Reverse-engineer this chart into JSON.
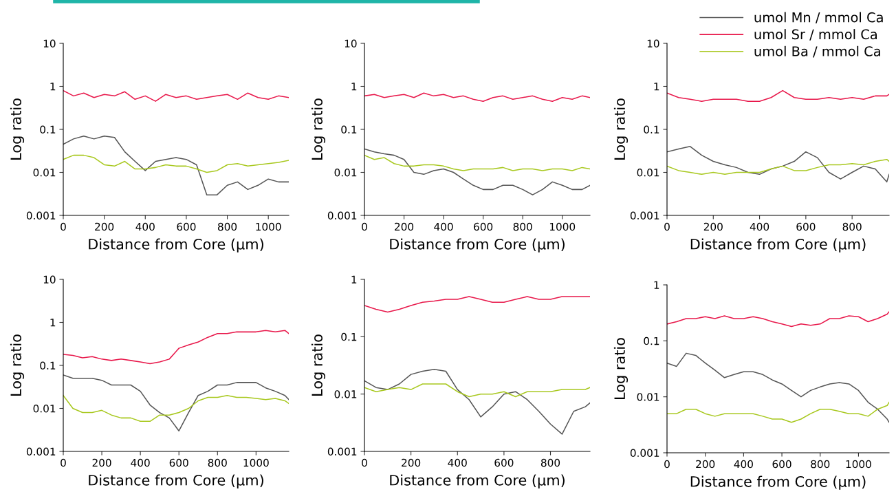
{
  "chart_data": [
    {
      "type": "line",
      "xlabel": "Distance from Core (μm)",
      "ylabel": "Log ratio",
      "log": true,
      "grid": false,
      "xlim": [
        0,
        1100
      ],
      "ylim": [
        0.001,
        10
      ],
      "xticks": [
        0,
        200,
        400,
        600,
        800,
        1000
      ],
      "yticks": [
        0.001,
        0.01,
        0.1,
        1,
        10
      ],
      "x": [
        0,
        50,
        100,
        150,
        200,
        250,
        300,
        350,
        400,
        450,
        500,
        550,
        600,
        650,
        700,
        750,
        800,
        850,
        900,
        950,
        1000,
        1050,
        1100
      ],
      "series": [
        {
          "color": "#555555",
          "values": [
            0.045,
            0.06,
            0.07,
            0.06,
            0.07,
            0.065,
            0.03,
            0.018,
            0.011,
            0.018,
            0.02,
            0.022,
            0.02,
            0.015,
            0.003,
            0.003,
            0.005,
            0.006,
            0.004,
            0.005,
            0.007,
            0.006,
            0.006
          ]
        },
        {
          "color": "#e8174a",
          "values": [
            0.8,
            0.6,
            0.7,
            0.55,
            0.65,
            0.6,
            0.75,
            0.5,
            0.6,
            0.45,
            0.65,
            0.55,
            0.6,
            0.5,
            0.55,
            0.6,
            0.65,
            0.5,
            0.7,
            0.55,
            0.5,
            0.6,
            0.55
          ]
        },
        {
          "color": "#a8c81e",
          "values": [
            0.02,
            0.025,
            0.025,
            0.022,
            0.015,
            0.014,
            0.018,
            0.012,
            0.012,
            0.013,
            0.015,
            0.014,
            0.014,
            0.012,
            0.01,
            0.011,
            0.015,
            0.016,
            0.014,
            0.015,
            0.016,
            0.017,
            0.019
          ]
        }
      ]
    },
    {
      "type": "line",
      "xlabel": "Distance from Core (μm)",
      "ylabel": "Log ratio",
      "log": true,
      "grid": false,
      "xlim": [
        0,
        1140
      ],
      "ylim": [
        0.001,
        10
      ],
      "xticks": [
        0,
        200,
        400,
        600,
        800,
        1000
      ],
      "yticks": [
        0.001,
        0.01,
        0.1,
        1,
        10
      ],
      "x": [
        0,
        50,
        100,
        150,
        200,
        250,
        300,
        350,
        400,
        450,
        500,
        550,
        600,
        650,
        700,
        750,
        800,
        850,
        900,
        950,
        1000,
        1050,
        1100,
        1140
      ],
      "series": [
        {
          "color": "#555555",
          "values": [
            0.035,
            0.03,
            0.027,
            0.025,
            0.02,
            0.01,
            0.009,
            0.011,
            0.012,
            0.01,
            0.007,
            0.005,
            0.004,
            0.004,
            0.005,
            0.005,
            0.004,
            0.003,
            0.004,
            0.006,
            0.005,
            0.004,
            0.004,
            0.005
          ]
        },
        {
          "color": "#e8174a",
          "values": [
            0.6,
            0.65,
            0.55,
            0.6,
            0.65,
            0.55,
            0.7,
            0.6,
            0.65,
            0.55,
            0.6,
            0.5,
            0.45,
            0.55,
            0.6,
            0.5,
            0.55,
            0.6,
            0.5,
            0.45,
            0.55,
            0.5,
            0.6,
            0.55
          ]
        },
        {
          "color": "#a8c81e",
          "values": [
            0.025,
            0.02,
            0.022,
            0.016,
            0.014,
            0.014,
            0.015,
            0.015,
            0.014,
            0.012,
            0.011,
            0.012,
            0.012,
            0.012,
            0.013,
            0.011,
            0.012,
            0.012,
            0.011,
            0.012,
            0.012,
            0.011,
            0.013,
            0.012
          ]
        }
      ]
    },
    {
      "type": "line",
      "xlabel": "Distance from Core (μm)",
      "ylabel": "Log ratio",
      "log": true,
      "grid": false,
      "legend": "top right",
      "xlim": [
        0,
        960
      ],
      "ylim": [
        0.001,
        10
      ],
      "xticks": [
        0,
        200,
        400,
        600,
        800
      ],
      "yticks": [
        0.001,
        0.01,
        0.1,
        1,
        10
      ],
      "x": [
        0,
        50,
        100,
        150,
        200,
        250,
        300,
        350,
        400,
        450,
        500,
        550,
        600,
        650,
        700,
        750,
        800,
        850,
        900,
        950,
        960
      ],
      "series": [
        {
          "name": "umol Mn / mmol Ca",
          "color": "#555555",
          "values": [
            0.03,
            0.035,
            0.04,
            0.025,
            0.018,
            0.015,
            0.013,
            0.01,
            0.009,
            0.012,
            0.014,
            0.018,
            0.03,
            0.022,
            0.01,
            0.007,
            0.01,
            0.014,
            0.012,
            0.006,
            0.009
          ]
        },
        {
          "name": "umol Sr / mmol Ca",
          "color": "#e8174a",
          "values": [
            0.7,
            0.55,
            0.5,
            0.45,
            0.5,
            0.5,
            0.5,
            0.45,
            0.45,
            0.55,
            0.8,
            0.55,
            0.5,
            0.5,
            0.55,
            0.5,
            0.55,
            0.5,
            0.6,
            0.6,
            0.65
          ]
        },
        {
          "name": "umol Ba / mmol Ca",
          "color": "#a8c81e",
          "values": [
            0.014,
            0.011,
            0.01,
            0.009,
            0.01,
            0.009,
            0.01,
            0.01,
            0.01,
            0.012,
            0.014,
            0.011,
            0.011,
            0.013,
            0.015,
            0.015,
            0.016,
            0.015,
            0.018,
            0.02,
            0.018
          ]
        }
      ]
    },
    {
      "type": "line",
      "xlabel": "Distance from Core (μm)",
      "ylabel": "Log ratio",
      "log": true,
      "grid": false,
      "xlim": [
        0,
        1170
      ],
      "ylim": [
        0.001,
        10
      ],
      "xticks": [
        0,
        200,
        400,
        600,
        800,
        1000
      ],
      "yticks": [
        0.001,
        0.01,
        0.1,
        1,
        10
      ],
      "x": [
        0,
        50,
        100,
        150,
        200,
        250,
        300,
        350,
        400,
        450,
        500,
        550,
        600,
        650,
        700,
        750,
        800,
        850,
        900,
        950,
        1000,
        1050,
        1100,
        1150,
        1170
      ],
      "series": [
        {
          "color": "#555555",
          "values": [
            0.06,
            0.05,
            0.05,
            0.05,
            0.045,
            0.035,
            0.035,
            0.035,
            0.025,
            0.012,
            0.008,
            0.006,
            0.003,
            0.008,
            0.02,
            0.025,
            0.035,
            0.035,
            0.04,
            0.04,
            0.04,
            0.03,
            0.025,
            0.02,
            0.016
          ]
        },
        {
          "color": "#e8174a",
          "values": [
            0.18,
            0.17,
            0.15,
            0.16,
            0.14,
            0.13,
            0.14,
            0.13,
            0.12,
            0.11,
            0.12,
            0.14,
            0.25,
            0.3,
            0.35,
            0.45,
            0.55,
            0.55,
            0.6,
            0.6,
            0.6,
            0.65,
            0.6,
            0.65,
            0.55
          ]
        },
        {
          "color": "#a8c81e",
          "values": [
            0.02,
            0.01,
            0.008,
            0.008,
            0.009,
            0.007,
            0.006,
            0.006,
            0.005,
            0.005,
            0.007,
            0.007,
            0.008,
            0.01,
            0.015,
            0.018,
            0.018,
            0.02,
            0.018,
            0.018,
            0.017,
            0.016,
            0.017,
            0.015,
            0.013
          ]
        }
      ]
    },
    {
      "type": "line",
      "xlabel": "Distance from Core (μm)",
      "ylabel": "Log ratio",
      "log": true,
      "grid": false,
      "xlim": [
        0,
        970
      ],
      "ylim": [
        0.001,
        1
      ],
      "xticks": [
        0,
        200,
        400,
        600,
        800
      ],
      "yticks": [
        0.001,
        0.01,
        0.1,
        1
      ],
      "x": [
        0,
        50,
        100,
        150,
        200,
        250,
        300,
        350,
        400,
        450,
        500,
        550,
        600,
        650,
        700,
        750,
        800,
        850,
        900,
        950,
        970
      ],
      "series": [
        {
          "color": "#555555",
          "values": [
            0.017,
            0.013,
            0.012,
            0.015,
            0.022,
            0.025,
            0.027,
            0.025,
            0.012,
            0.008,
            0.004,
            0.006,
            0.01,
            0.011,
            0.008,
            0.005,
            0.003,
            0.002,
            0.005,
            0.006,
            0.007
          ]
        },
        {
          "color": "#e8174a",
          "values": [
            0.35,
            0.3,
            0.27,
            0.3,
            0.35,
            0.4,
            0.42,
            0.45,
            0.45,
            0.5,
            0.45,
            0.4,
            0.4,
            0.45,
            0.5,
            0.45,
            0.45,
            0.5,
            0.5,
            0.5,
            0.5
          ]
        },
        {
          "color": "#a8c81e",
          "values": [
            0.013,
            0.011,
            0.012,
            0.013,
            0.012,
            0.015,
            0.015,
            0.015,
            0.011,
            0.009,
            0.01,
            0.01,
            0.011,
            0.009,
            0.011,
            0.011,
            0.011,
            0.012,
            0.012,
            0.012,
            0.013
          ]
        }
      ]
    },
    {
      "type": "line",
      "xlabel": "Distance from Core (μm)",
      "ylabel": "Log ratio",
      "log": true,
      "grid": false,
      "xlim": [
        0,
        1160
      ],
      "ylim": [
        0.001,
        1
      ],
      "xticks": [
        0,
        200,
        400,
        600,
        800,
        1000
      ],
      "yticks": [
        0.001,
        0.01,
        0.1,
        1
      ],
      "x": [
        0,
        50,
        100,
        150,
        200,
        250,
        300,
        350,
        400,
        450,
        500,
        550,
        600,
        650,
        700,
        750,
        800,
        850,
        900,
        950,
        1000,
        1050,
        1100,
        1150,
        1160
      ],
      "series": [
        {
          "color": "#555555",
          "values": [
            0.04,
            0.035,
            0.06,
            0.055,
            0.04,
            0.03,
            0.022,
            0.025,
            0.028,
            0.028,
            0.025,
            0.02,
            0.017,
            0.013,
            0.01,
            0.013,
            0.015,
            0.017,
            0.018,
            0.017,
            0.013,
            0.008,
            0.006,
            0.004,
            0.0035
          ]
        },
        {
          "color": "#e8174a",
          "values": [
            0.2,
            0.22,
            0.25,
            0.25,
            0.27,
            0.25,
            0.28,
            0.25,
            0.25,
            0.27,
            0.25,
            0.22,
            0.2,
            0.18,
            0.2,
            0.19,
            0.2,
            0.25,
            0.25,
            0.28,
            0.27,
            0.22,
            0.25,
            0.3,
            0.33
          ]
        },
        {
          "color": "#a8c81e",
          "values": [
            0.005,
            0.005,
            0.006,
            0.006,
            0.005,
            0.0045,
            0.005,
            0.005,
            0.005,
            0.005,
            0.0045,
            0.004,
            0.004,
            0.0035,
            0.004,
            0.005,
            0.006,
            0.006,
            0.0055,
            0.005,
            0.005,
            0.0045,
            0.006,
            0.007,
            0.008
          ]
        }
      ]
    }
  ]
}
